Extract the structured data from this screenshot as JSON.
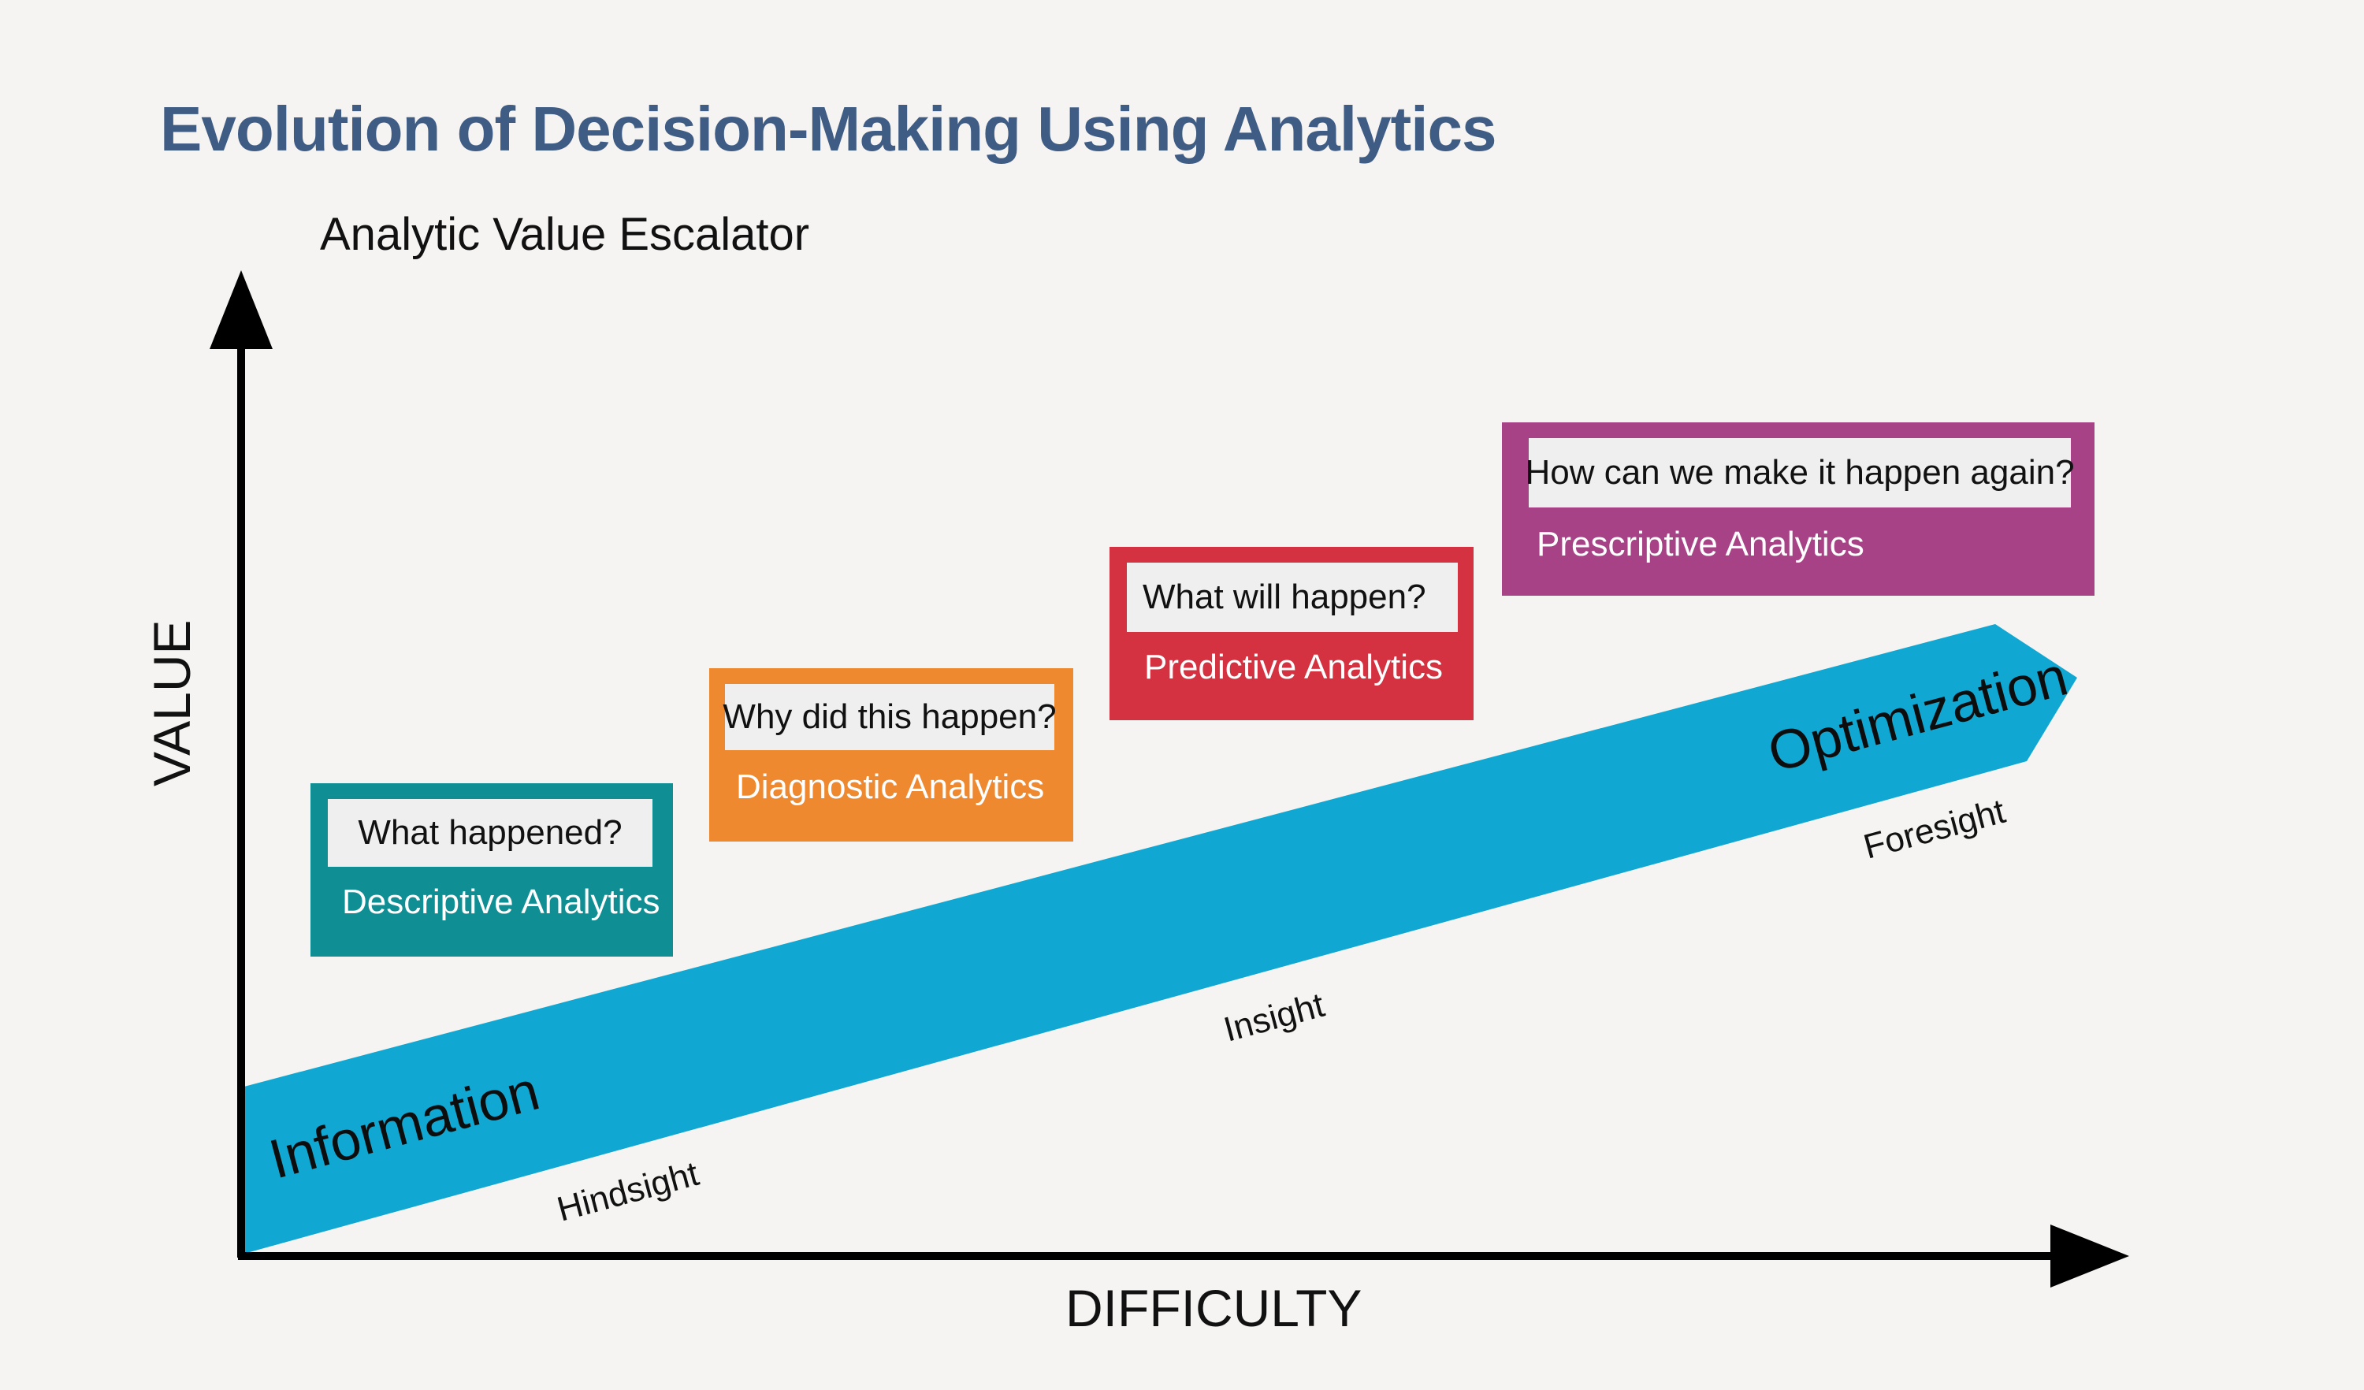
{
  "header": {
    "title": "Evolution of Decision-Making Using Analytics",
    "subtitle": "Analytic Value Escalator"
  },
  "axes": {
    "y_label": "VALUE",
    "x_label": "DIFFICULTY"
  },
  "arrow": {
    "start_label": "Information",
    "end_label": "Optimization",
    "color": "#10a8d2"
  },
  "stages": [
    {
      "question": "What happened?",
      "type": "Descriptive Analytics",
      "caption": "Hindsight",
      "color": "#0f8f94"
    },
    {
      "question": "Why did this happen?",
      "type": "Diagnostic Analytics",
      "caption": "",
      "color": "#ee8930"
    },
    {
      "question": "What will happen?",
      "type": "Predictive Analytics",
      "caption": "Insight",
      "color": "#d43240"
    },
    {
      "question": "How can we make it happen again?",
      "type": "Prescriptive Analytics",
      "caption": "Foresight",
      "color": "#a84287"
    }
  ]
}
